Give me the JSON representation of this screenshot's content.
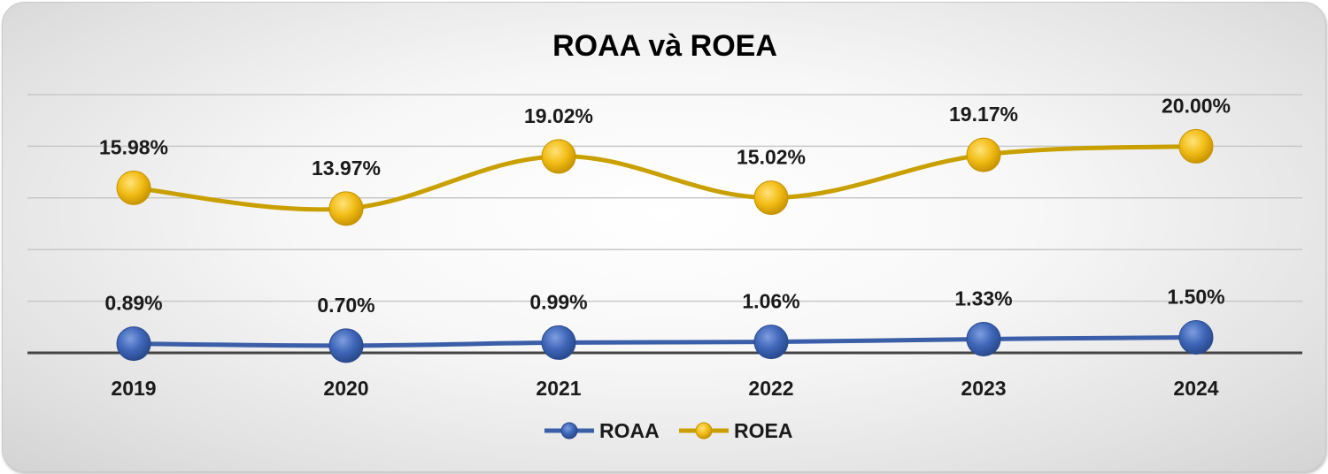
{
  "chart_data": {
    "type": "line",
    "title": "ROAA và ROEA",
    "categories": [
      "2019",
      "2020",
      "2021",
      "2022",
      "2023",
      "2024"
    ],
    "series": [
      {
        "name": "ROAA",
        "values": [
          0.89,
          0.7,
          0.99,
          1.06,
          1.33,
          1.5
        ],
        "labels": [
          "0.89%",
          "0.70%",
          "0.99%",
          "1.06%",
          "1.33%",
          "1.50%"
        ],
        "color": "#3b5ea8",
        "marker_color": "#3f66b8"
      },
      {
        "name": "ROEA",
        "values": [
          15.98,
          13.97,
          19.02,
          15.02,
          19.17,
          20.0
        ],
        "labels": [
          "15.98%",
          "13.97%",
          "19.02%",
          "15.02%",
          "19.17%",
          "20.00%"
        ],
        "color": "#c9a000",
        "marker_color": "#f2be18"
      }
    ],
    "ylim": [
      0,
      25
    ],
    "grid": true,
    "smooth": true,
    "legend": "bottom"
  }
}
